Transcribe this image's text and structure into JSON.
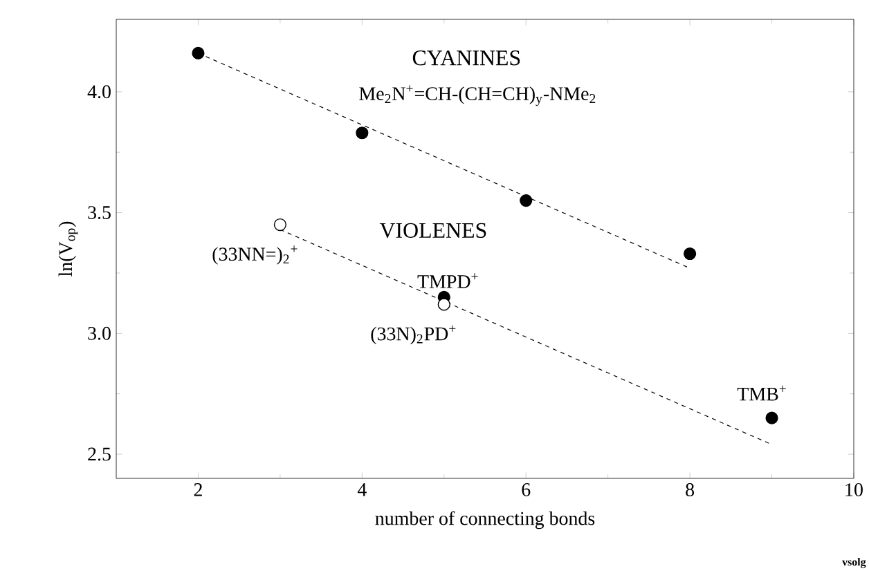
{
  "chart_data": {
    "type": "scatter",
    "xlabel": "number of connecting bonds",
    "ylabel": "ln(V$_{op}$)",
    "xlim": [
      1,
      10
    ],
    "ylim": [
      2.4,
      4.3
    ],
    "xticks": [
      2,
      4,
      6,
      8,
      10
    ],
    "yticks": [
      2.5,
      {
        "value": 3,
        "label": "3.0"
      },
      3.5,
      {
        "value": 4,
        "label": "4.0"
      }
    ],
    "marker": "circle",
    "grid": false,
    "series": [
      {
        "color": "#000000",
        "x": [
          2,
          4,
          6,
          8
        ],
        "values": [
          4.16,
          3.83,
          3.55,
          3.33
        ]
      },
      {
        "color": "#000000",
        "x": [
          5,
          9
        ],
        "values": [
          3.15,
          2.65
        ]
      },
      {
        "color": "#ffffff",
        "x": [
          3,
          5
        ],
        "values": [
          3.45,
          3.12
        ]
      },
      {
        "type": "line",
        "color": "#000000",
        "line_style": "dashed",
        "marker": "none",
        "x": [
          2,
          8
        ],
        "values": [
          4.16,
          3.27
        ]
      },
      {
        "type": "line",
        "color": "#000000",
        "line_style": "dashed",
        "marker": "none",
        "x": [
          3,
          9
        ],
        "values": [
          3.43,
          2.54
        ]
      }
    ],
    "annotations": [
      "CYANINES",
      "Me$_{2}$N$^{+}$=CH-(CH=CH)$_{y}$-NMe$_{2}$",
      "VIOLENES",
      {
        "text": "(33NN=)$_{2}$$^{+}$",
        "x": 3,
        "y": 3.45
      },
      {
        "text": "TMPD$^{+}$",
        "x": 5,
        "y": 3.15
      },
      {
        "text": "(33N)$_{2}$PD$^{+}$",
        "x": 5,
        "y": 3.12
      },
      {
        "text": "TMB$^{+}$",
        "x": 9,
        "y": 2.65
      },
      "vsolg"
    ]
  }
}
